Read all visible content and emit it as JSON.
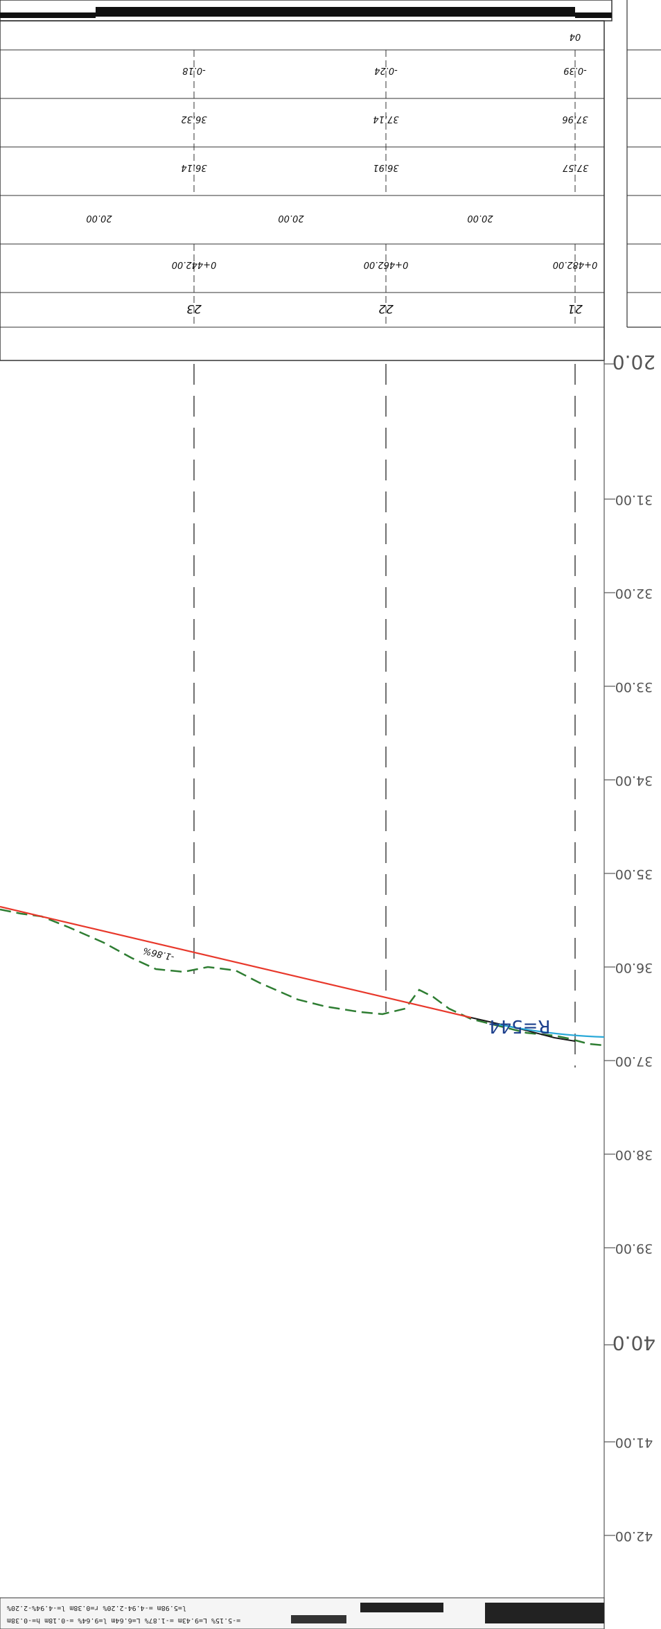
{
  "elevation_axis": [
    {
      "label": "20.0",
      "major": true
    },
    {
      "label": "31.00"
    },
    {
      "label": "32.00"
    },
    {
      "label": "33.00"
    },
    {
      "label": "34.00"
    },
    {
      "label": "35.00"
    },
    {
      "label": "36.00"
    },
    {
      "label": "37.00"
    },
    {
      "label": "38.00"
    },
    {
      "label": "39.00"
    },
    {
      "label": "40.0",
      "major": true
    },
    {
      "label": "41.00"
    },
    {
      "label": "42.00"
    }
  ],
  "stations": [
    {
      "name": "21",
      "chainage": "0+482.00",
      "spacing": "20.00",
      "ground": "37.57",
      "design": "37.96",
      "cutfill": "-0.39"
    },
    {
      "name": "22",
      "chainage": "0+462.00",
      "spacing": "20.00",
      "ground": "36.91",
      "design": "37.14",
      "cutfill": "-0.24"
    },
    {
      "name": "23",
      "chainage": "0+442.00",
      "spacing": "20.00",
      "ground": "36.14",
      "design": "36.32",
      "cutfill": "-0.18"
    }
  ],
  "table_extra": {
    "top_right_mark": "04"
  },
  "annotations": {
    "curve_radius": "R=544",
    "grade": "-1.86%"
  },
  "footer_lines": [
    "l=5.98m  =-4.94-2.20%  r=0.38m  l=-4.94%-2.20%",
    "=-5.15%  L=9.43m  =-1.87%  L=6.64m  l=9.64%  =-0.18m  h=-0.38m"
  ],
  "colors": {
    "design_line": "#e8382b",
    "ground_line": "#2e7d32",
    "curve": "#2aa9d8",
    "curve_dark": "#1a1a1a",
    "frame": "#333333"
  }
}
